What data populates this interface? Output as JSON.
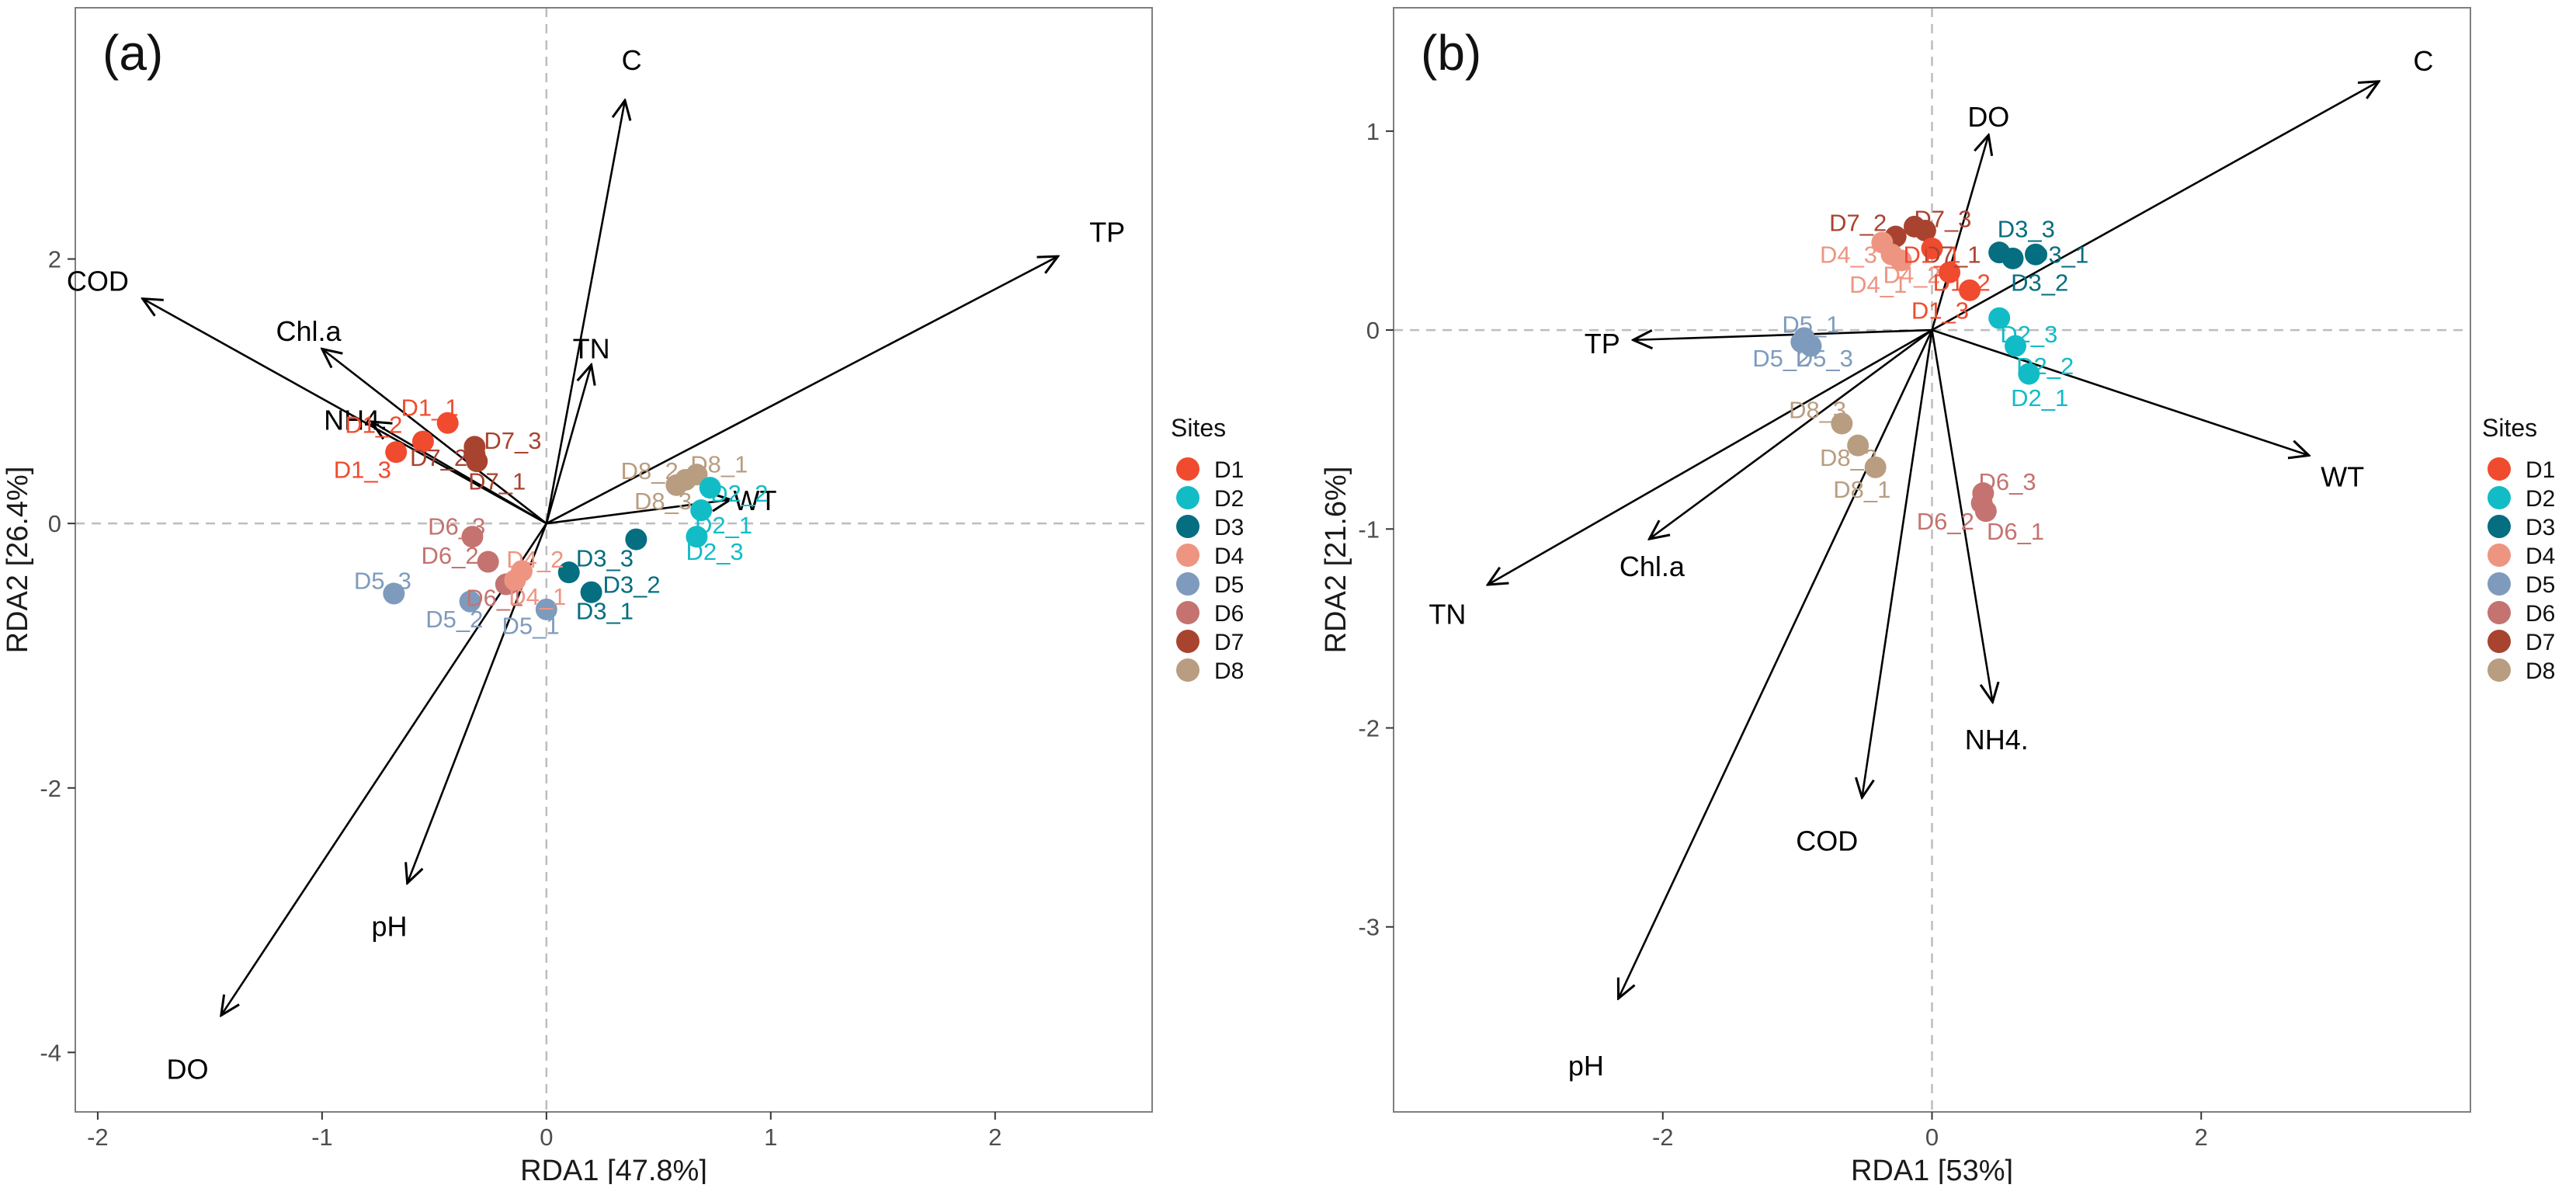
{
  "site_colors": {
    "D1": "#F04B2F",
    "D2": "#12BCC6",
    "D3": "#056E80",
    "D4": "#EE9582",
    "D5": "#7E9BBD",
    "D6": "#C47370",
    "D7": "#A84330",
    "D8": "#B99D80"
  },
  "chart_data": [
    {
      "type": "scatter",
      "panel_tag": "(a)",
      "xlabel": "RDA1 [47.8%]",
      "ylabel": "RDA2 [26.4%]",
      "xlim": [
        -2.1,
        2.7
      ],
      "ylim": [
        -4.45,
        3.9
      ],
      "xticks": [
        -2,
        -1,
        0,
        1,
        2
      ],
      "yticks": [
        -4,
        -2,
        0,
        2
      ],
      "grid": false,
      "zero_lines": true,
      "legend": {
        "title": "Sites",
        "position": "right",
        "entries": [
          "D1",
          "D2",
          "D3",
          "D4",
          "D5",
          "D6",
          "D7",
          "D8"
        ]
      },
      "arrows": [
        {
          "name": "C",
          "x": 0.35,
          "y": 3.2,
          "lx": 0.38,
          "ly": 3.5
        },
        {
          "name": "TP",
          "x": 2.28,
          "y": 2.02,
          "lx": 2.5,
          "ly": 2.2
        },
        {
          "name": "COD",
          "x": -1.8,
          "y": 1.7,
          "lx": -2.0,
          "ly": 1.83
        },
        {
          "name": "Chl.a",
          "x": -1.0,
          "y": 1.32,
          "lx": -1.06,
          "ly": 1.45
        },
        {
          "name": "TN",
          "x": 0.2,
          "y": 1.2,
          "lx": 0.2,
          "ly": 1.32
        },
        {
          "name": "NH4.",
          "x": -0.78,
          "y": 0.77,
          "lx": -0.85,
          "ly": 0.78
        },
        {
          "name": "WT",
          "x": 0.82,
          "y": 0.18,
          "lx": 0.93,
          "ly": 0.17
        },
        {
          "name": "pH",
          "x": -0.62,
          "y": -2.72,
          "lx": -0.7,
          "ly": -3.05
        },
        {
          "name": "DO",
          "x": -1.45,
          "y": -3.72,
          "lx": -1.6,
          "ly": -4.13
        }
      ],
      "points": [
        {
          "site": "D1",
          "label": "D1_1",
          "x": -0.44,
          "y": 0.76,
          "lx": -0.52,
          "ly": 0.88
        },
        {
          "site": "D1",
          "label": "D1_2",
          "x": -0.55,
          "y": 0.62,
          "lx": -0.77,
          "ly": 0.75
        },
        {
          "site": "D1",
          "label": "D1_3",
          "x": -0.67,
          "y": 0.54,
          "lx": -0.82,
          "ly": 0.41
        },
        {
          "site": "D7",
          "label": "D7_3",
          "x": -0.32,
          "y": 0.58,
          "lx": -0.15,
          "ly": 0.63
        },
        {
          "site": "D7",
          "label": "D7_2",
          "x": -0.32,
          "y": 0.52,
          "lx": -0.48,
          "ly": 0.5
        },
        {
          "site": "D7",
          "label": "D7_1",
          "x": -0.31,
          "y": 0.47,
          "lx": -0.22,
          "ly": 0.32
        },
        {
          "site": "D8",
          "label": "D8_1",
          "x": 0.67,
          "y": 0.37,
          "lx": 0.77,
          "ly": 0.45
        },
        {
          "site": "D8",
          "label": "D8_2",
          "x": 0.62,
          "y": 0.33,
          "lx": 0.46,
          "ly": 0.4
        },
        {
          "site": "D8",
          "label": "D8_3",
          "x": 0.58,
          "y": 0.29,
          "lx": 0.52,
          "ly": 0.17
        },
        {
          "site": "D2",
          "label": "D2_2",
          "x": 0.73,
          "y": 0.27,
          "lx": 0.86,
          "ly": 0.23
        },
        {
          "site": "D2",
          "label": "D2_1",
          "x": 0.69,
          "y": 0.1,
          "lx": 0.79,
          "ly": -0.01
        },
        {
          "site": "D2",
          "label": "D2_3",
          "x": 0.67,
          "y": -0.1,
          "lx": 0.75,
          "ly": -0.21
        },
        {
          "site": "D3",
          "label": "D3_3",
          "x": 0.4,
          "y": -0.12,
          "lx": 0.26,
          "ly": -0.26
        },
        {
          "site": "D3",
          "label": "D3_2",
          "x": 0.2,
          "y": -0.52,
          "lx": 0.38,
          "ly": -0.46
        },
        {
          "site": "D3",
          "label": "D3_1",
          "x": 0.1,
          "y": -0.37,
          "lx": 0.26,
          "ly": -0.66
        },
        {
          "site": "D6",
          "label": "D6_3",
          "x": -0.33,
          "y": -0.1,
          "lx": -0.4,
          "ly": -0.02
        },
        {
          "site": "D6",
          "label": "D6_2",
          "x": -0.26,
          "y": -0.29,
          "lx": -0.43,
          "ly": -0.24
        },
        {
          "site": "D6",
          "label": "D6_1",
          "x": -0.18,
          "y": -0.46,
          "lx": -0.23,
          "ly": -0.56
        },
        {
          "site": "D4",
          "label": "D4_2",
          "x": -0.11,
          "y": -0.36,
          "lx": -0.05,
          "ly": -0.27
        },
        {
          "site": "D4",
          "label": "D4_1",
          "x": -0.14,
          "y": -0.43,
          "lx": -0.04,
          "ly": -0.55
        },
        {
          "site": "D5",
          "label": "D5_3",
          "x": -0.68,
          "y": -0.53,
          "lx": -0.73,
          "ly": -0.43
        },
        {
          "site": "D5",
          "label": "D5_2",
          "x": -0.34,
          "y": -0.59,
          "lx": -0.41,
          "ly": -0.72
        },
        {
          "site": "D5",
          "label": "D5_1",
          "x": 0.0,
          "y": -0.65,
          "lx": -0.07,
          "ly": -0.77
        }
      ]
    },
    {
      "type": "scatter",
      "panel_tag": "(b)",
      "xlabel": "RDA1 [53%]",
      "ylabel": "RDA2 [21.6%]",
      "xlim": [
        -4.0,
        4.0
      ],
      "ylim": [
        -3.93,
        1.62
      ],
      "xticks": [
        -2,
        0,
        2
      ],
      "yticks": [
        -3,
        -2,
        -1,
        0,
        1
      ],
      "grid": false,
      "zero_lines": true,
      "legend": {
        "title": "Sites",
        "position": "right",
        "entries": [
          "D1",
          "D2",
          "D3",
          "D4",
          "D5",
          "D6",
          "D7",
          "D8"
        ]
      },
      "arrows": [
        {
          "name": "C",
          "x": 3.32,
          "y": 1.25,
          "lx": 3.65,
          "ly": 1.35
        },
        {
          "name": "DO",
          "x": 0.42,
          "y": 0.98,
          "lx": 0.42,
          "ly": 1.07
        },
        {
          "name": "TP",
          "x": -2.22,
          "y": -0.05,
          "lx": -2.45,
          "ly": -0.07
        },
        {
          "name": "WT",
          "x": 2.8,
          "y": -0.63,
          "lx": 3.05,
          "ly": -0.74
        },
        {
          "name": "Chl.a",
          "x": -2.1,
          "y": -1.05,
          "lx": -2.08,
          "ly": -1.19
        },
        {
          "name": "TN",
          "x": -3.3,
          "y": -1.28,
          "lx": -3.6,
          "ly": -1.43
        },
        {
          "name": "NH4.",
          "x": 0.45,
          "y": -1.87,
          "lx": 0.48,
          "ly": -2.06
        },
        {
          "name": "COD",
          "x": -0.52,
          "y": -2.35,
          "lx": -0.78,
          "ly": -2.57
        },
        {
          "name": "pH",
          "x": -2.33,
          "y": -3.36,
          "lx": -2.57,
          "ly": -3.7
        }
      ],
      "points": [
        {
          "site": "D7",
          "label": "D7_2",
          "x": -0.27,
          "y": 0.47,
          "lx": -0.55,
          "ly": 0.54
        },
        {
          "site": "D7",
          "label": "D7_3",
          "x": -0.13,
          "y": 0.52,
          "lx": 0.08,
          "ly": 0.56
        },
        {
          "site": "D7",
          "label": "D7_1",
          "x": -0.05,
          "y": 0.5,
          "lx": 0.15,
          "ly": 0.38
        },
        {
          "site": "D4",
          "label": "D4_3",
          "x": -0.37,
          "y": 0.44,
          "lx": -0.62,
          "ly": 0.38
        },
        {
          "site": "D4",
          "label": "D4_2",
          "x": -0.3,
          "y": 0.38,
          "lx": -0.15,
          "ly": 0.28
        },
        {
          "site": "D4",
          "label": "D4_1",
          "x": -0.23,
          "y": 0.35,
          "lx": -0.4,
          "ly": 0.23
        },
        {
          "site": "D1",
          "label": "D1_1",
          "x": 0.0,
          "y": 0.41,
          "lx": 0.0,
          "ly": 0.38
        },
        {
          "site": "D1",
          "label": "D1_2",
          "x": 0.13,
          "y": 0.29,
          "lx": 0.22,
          "ly": 0.24
        },
        {
          "site": "D1",
          "label": "D1_3",
          "x": 0.28,
          "y": 0.2,
          "lx": 0.06,
          "ly": 0.1
        },
        {
          "site": "D3",
          "label": "D3_3",
          "x": 0.5,
          "y": 0.39,
          "lx": 0.7,
          "ly": 0.51
        },
        {
          "site": "D3",
          "label": "D3_1",
          "x": 0.6,
          "y": 0.36,
          "lx": 0.95,
          "ly": 0.38
        },
        {
          "site": "D3",
          "label": "D3_2",
          "x": 0.77,
          "y": 0.38,
          "lx": 0.8,
          "ly": 0.24
        },
        {
          "site": "D2",
          "label": "D2_3",
          "x": 0.5,
          "y": 0.06,
          "lx": 0.72,
          "ly": -0.02
        },
        {
          "site": "D2",
          "label": "D2_2",
          "x": 0.62,
          "y": -0.08,
          "lx": 0.84,
          "ly": -0.18
        },
        {
          "site": "D2",
          "label": "D2_1",
          "x": 0.72,
          "y": -0.22,
          "lx": 0.8,
          "ly": -0.34
        },
        {
          "site": "D5",
          "label": "D5_1",
          "x": -0.95,
          "y": -0.04,
          "lx": -0.9,
          "ly": 0.03
        },
        {
          "site": "D5",
          "label": "D5_2",
          "x": -0.97,
          "y": -0.06,
          "lx": -1.12,
          "ly": -0.14
        },
        {
          "site": "D5",
          "label": "D5_3",
          "x": -0.9,
          "y": -0.08,
          "lx": -0.8,
          "ly": -0.14
        },
        {
          "site": "D8",
          "label": "D8_3",
          "x": -0.67,
          "y": -0.47,
          "lx": -0.85,
          "ly": -0.4
        },
        {
          "site": "D8",
          "label": "D8_2",
          "x": -0.55,
          "y": -0.58,
          "lx": -0.62,
          "ly": -0.64
        },
        {
          "site": "D8",
          "label": "D8_1",
          "x": -0.42,
          "y": -0.69,
          "lx": -0.52,
          "ly": -0.8
        },
        {
          "site": "D6",
          "label": "D6_3",
          "x": 0.38,
          "y": -0.82,
          "lx": 0.56,
          "ly": -0.76
        },
        {
          "site": "D6",
          "label": "D6_2",
          "x": 0.37,
          "y": -0.87,
          "lx": 0.1,
          "ly": -0.96
        },
        {
          "site": "D6",
          "label": "D6_1",
          "x": 0.4,
          "y": -0.91,
          "lx": 0.62,
          "ly": -1.01
        }
      ]
    }
  ]
}
